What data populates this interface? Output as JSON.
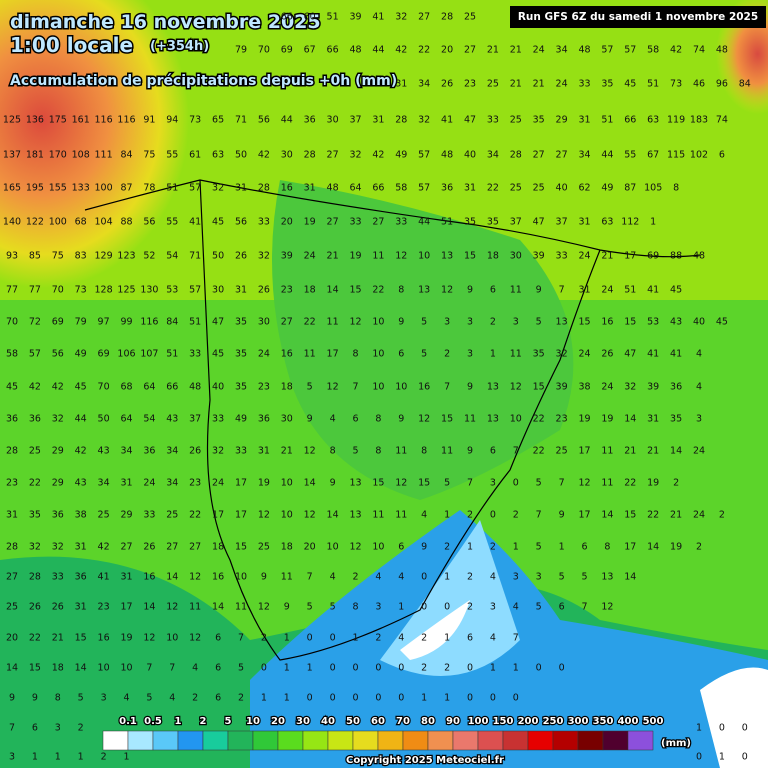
{
  "header": {
    "date": "dimanche 16 novembre 2025",
    "time": "1:00 locale",
    "lead": "(+354h)",
    "subtitle": "Accumulation de précipitations depuis +0h (mm)",
    "run": "Run GFS 6Z du samedi 1 novembre 2025"
  },
  "footer": {
    "copyright": "Copyright 2025 Meteociel.fr"
  },
  "legend": {
    "unit": "(mm)",
    "thresholds": [
      0.1,
      0.5,
      1,
      2,
      5,
      10,
      20,
      30,
      40,
      50,
      60,
      70,
      80,
      90,
      100,
      150,
      200,
      250,
      300,
      350,
      400,
      500
    ],
    "colors": [
      "#ffffff",
      "#a8e8ff",
      "#5ac8f8",
      "#2296f0",
      "#18cc9c",
      "#22b45a",
      "#30c838",
      "#5adc1e",
      "#96e614",
      "#c8e614",
      "#e6dc1e",
      "#f0b414",
      "#f08c14",
      "#f09050",
      "#ea786c",
      "#dc5050",
      "#c83232",
      "#e60000",
      "#b40000",
      "#780000",
      "#50002e",
      "#8c50dc"
    ]
  },
  "grid": {
    "rows": [
      [
        null,
        null,
        null,
        null,
        null,
        null,
        null,
        null,
        null,
        null,
        null,
        null,
        66,
        60,
        51,
        39,
        41,
        32,
        27,
        28,
        25
      ],
      [
        null,
        null,
        null,
        null,
        null,
        null,
        null,
        null,
        null,
        null,
        79,
        70,
        69,
        67,
        66,
        48,
        44,
        42,
        22,
        20,
        27,
        21,
        21,
        24,
        34,
        48,
        57,
        57,
        58,
        42,
        74,
        48
      ],
      [
        null,
        null,
        null,
        null,
        null,
        null,
        null,
        null,
        null,
        null,
        null,
        null,
        null,
        null,
        null,
        null,
        null,
        31,
        34,
        26,
        23,
        25,
        21,
        21,
        24,
        33,
        35,
        45,
        51,
        73,
        46,
        96,
        84
      ],
      [
        125,
        136,
        175,
        161,
        116,
        116,
        91,
        94,
        73,
        65,
        71,
        56,
        44,
        36,
        30,
        37,
        31,
        28,
        32,
        41,
        47,
        33,
        25,
        35,
        29,
        31,
        51,
        66,
        63,
        119,
        183,
        74
      ],
      [
        137,
        181,
        170,
        108,
        111,
        84,
        75,
        55,
        61,
        63,
        50,
        42,
        30,
        28,
        27,
        32,
        42,
        49,
        57,
        48,
        40,
        34,
        28,
        27,
        27,
        34,
        44,
        55,
        67,
        115,
        102,
        6
      ],
      [
        165,
        195,
        155,
        133,
        100,
        87,
        78,
        51,
        57,
        32,
        31,
        28,
        16,
        31,
        48,
        64,
        66,
        58,
        57,
        36,
        31,
        22,
        25,
        25,
        40,
        62,
        49,
        87,
        105,
        8
      ],
      [
        140,
        122,
        100,
        68,
        104,
        88,
        56,
        55,
        41,
        45,
        56,
        33,
        20,
        19,
        27,
        33,
        27,
        33,
        44,
        51,
        35,
        35,
        37,
        47,
        37,
        31,
        63,
        112,
        1
      ],
      [
        93,
        85,
        75,
        83,
        129,
        123,
        52,
        54,
        71,
        50,
        26,
        32,
        39,
        24,
        21,
        19,
        11,
        12,
        10,
        13,
        15,
        18,
        30,
        39,
        33,
        24,
        21,
        17,
        69,
        88,
        48
      ],
      [
        77,
        77,
        70,
        73,
        128,
        125,
        130,
        53,
        57,
        30,
        31,
        26,
        23,
        18,
        14,
        15,
        22,
        8,
        13,
        12,
        9,
        6,
        11,
        9,
        7,
        31,
        24,
        51,
        41,
        45
      ],
      [
        70,
        72,
        69,
        79,
        97,
        99,
        116,
        84,
        51,
        47,
        35,
        30,
        27,
        22,
        11,
        12,
        10,
        9,
        5,
        3,
        3,
        2,
        3,
        5,
        13,
        15,
        16,
        15,
        53,
        43,
        40,
        45
      ],
      [
        58,
        57,
        56,
        49,
        69,
        106,
        107,
        51,
        33,
        45,
        35,
        24,
        16,
        11,
        17,
        8,
        10,
        6,
        5,
        2,
        3,
        1,
        11,
        35,
        32,
        24,
        26,
        47,
        41,
        41,
        4
      ],
      [
        45,
        42,
        42,
        45,
        70,
        68,
        64,
        66,
        48,
        40,
        35,
        23,
        18,
        5,
        12,
        7,
        10,
        10,
        16,
        7,
        9,
        13,
        12,
        15,
        39,
        38,
        24,
        32,
        39,
        36,
        4
      ],
      [
        36,
        36,
        32,
        44,
        50,
        64,
        54,
        43,
        37,
        33,
        49,
        36,
        30,
        9,
        4,
        6,
        8,
        9,
        12,
        15,
        11,
        13,
        10,
        22,
        23,
        19,
        19,
        14,
        31,
        35,
        3
      ],
      [
        28,
        25,
        29,
        42,
        43,
        34,
        36,
        34,
        26,
        32,
        33,
        31,
        21,
        12,
        8,
        5,
        8,
        11,
        8,
        11,
        9,
        6,
        7,
        22,
        25,
        17,
        11,
        21,
        21,
        14,
        24
      ],
      [
        23,
        22,
        29,
        43,
        34,
        31,
        24,
        34,
        23,
        24,
        17,
        19,
        10,
        14,
        9,
        13,
        15,
        12,
        15,
        5,
        7,
        3,
        0,
        5,
        7,
        12,
        11,
        22,
        19,
        2
      ],
      [
        31,
        35,
        36,
        38,
        25,
        29,
        33,
        25,
        22,
        17,
        17,
        12,
        10,
        12,
        14,
        13,
        11,
        11,
        4,
        1,
        2,
        0,
        2,
        7,
        9,
        17,
        14,
        15,
        22,
        21,
        24,
        2
      ],
      [
        28,
        32,
        32,
        31,
        42,
        27,
        26,
        27,
        27,
        18,
        15,
        25,
        18,
        20,
        10,
        12,
        10,
        6,
        9,
        2,
        1,
        2,
        1,
        5,
        1,
        6,
        8,
        17,
        14,
        19,
        2
      ],
      [
        27,
        28,
        33,
        36,
        41,
        31,
        16,
        14,
        12,
        16,
        10,
        9,
        11,
        7,
        4,
        2,
        4,
        4,
        0,
        1,
        2,
        4,
        3,
        3,
        5,
        5,
        13,
        14
      ],
      [
        25,
        26,
        26,
        31,
        23,
        17,
        14,
        12,
        11,
        14,
        11,
        12,
        9,
        5,
        5,
        8,
        3,
        1,
        0,
        0,
        2,
        3,
        4,
        5,
        6,
        7,
        12
      ],
      [
        20,
        22,
        21,
        15,
        16,
        19,
        12,
        10,
        12,
        6,
        7,
        2,
        1,
        0,
        0,
        1,
        2,
        4,
        2,
        1,
        6,
        4,
        7
      ],
      [
        14,
        15,
        18,
        14,
        10,
        10,
        7,
        7,
        4,
        6,
        5,
        0,
        1,
        1,
        0,
        0,
        0,
        0,
        2,
        2,
        0,
        1,
        1,
        0,
        0
      ],
      [
        9,
        9,
        8,
        5,
        3,
        4,
        5,
        4,
        2,
        6,
        2,
        1,
        1,
        0,
        0,
        0,
        0,
        0,
        1,
        1,
        0,
        0,
        0
      ],
      [
        7,
        6,
        3,
        2,
        null,
        null,
        null,
        null,
        null,
        null,
        null,
        null,
        null,
        null,
        null,
        null,
        null,
        null,
        null,
        null,
        null,
        null,
        null,
        null,
        null,
        null,
        null,
        null,
        null,
        null,
        1,
        0,
        0
      ],
      [
        3,
        1,
        1,
        1,
        2,
        1,
        null,
        null,
        null,
        null,
        null,
        null,
        null,
        null,
        null,
        null,
        null,
        null,
        null,
        null,
        null,
        null,
        null,
        null,
        null,
        null,
        null,
        null,
        null,
        null,
        0,
        1,
        0
      ]
    ]
  }
}
